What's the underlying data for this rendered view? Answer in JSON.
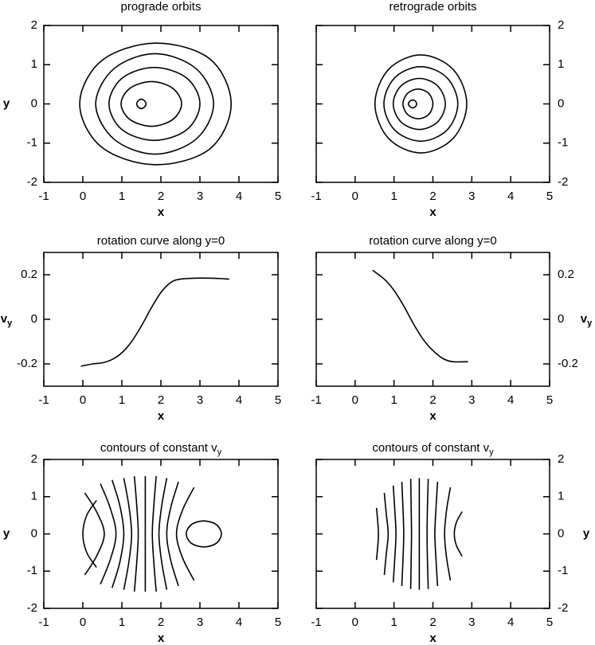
{
  "chart_data": [
    {
      "type": "line",
      "title": "prograde orbits",
      "xlabel": "x",
      "ylabel": "y",
      "yaxis_position": "left",
      "color": "#000000",
      "xlim": [
        -1,
        5
      ],
      "ylim": [
        -2,
        2
      ],
      "xticks": [
        -1,
        0,
        1,
        2,
        3,
        4,
        5
      ],
      "yticks": [
        -2,
        -1,
        0,
        1,
        2
      ],
      "series": [
        {
          "closed": true,
          "x": [
            3.8,
            3.25,
            1.85,
            0.48,
            -0.08,
            0.48,
            1.85,
            3.25
          ],
          "y": [
            0,
            1.15,
            1.55,
            1.1,
            0,
            -1.1,
            -1.55,
            -1.15
          ]
        },
        {
          "closed": true,
          "x": [
            3.35,
            2.9,
            1.85,
            0.8,
            0.33,
            0.8,
            1.85,
            2.9
          ],
          "y": [
            0,
            0.9,
            1.28,
            0.9,
            0,
            -0.9,
            -1.28,
            -0.9
          ]
        },
        {
          "closed": true,
          "x": [
            3.0,
            2.66,
            1.83,
            1.01,
            0.67,
            1.01,
            1.83,
            2.66
          ],
          "y": [
            0,
            0.66,
            0.93,
            0.66,
            0,
            -0.66,
            -0.93,
            -0.66
          ]
        },
        {
          "closed": true,
          "x": [
            2.53,
            2.3,
            1.76,
            1.21,
            0.98,
            1.21,
            1.76,
            2.3
          ],
          "y": [
            0,
            0.4,
            0.57,
            0.4,
            0,
            -0.4,
            -0.57,
            -0.4
          ]
        },
        {
          "closed": true,
          "x": [
            1.62,
            1.58,
            1.5,
            1.42,
            1.38,
            1.42,
            1.5,
            1.58
          ],
          "y": [
            0,
            0.08,
            0.12,
            0.08,
            0,
            -0.08,
            -0.12,
            -0.08
          ]
        }
      ]
    },
    {
      "type": "line",
      "title": "retrograde orbits",
      "xlabel": "x",
      "yaxis_position": "right",
      "color": "#000000",
      "xlim": [
        -1,
        5
      ],
      "ylim": [
        -2,
        2
      ],
      "xticks": [
        -1,
        0,
        1,
        2,
        3,
        4,
        5
      ],
      "yticks": [
        -2,
        -1,
        0,
        1,
        2
      ],
      "series": [
        {
          "closed": true,
          "x": [
            2.87,
            2.52,
            1.69,
            0.86,
            0.51,
            0.86,
            1.69,
            2.52
          ],
          "y": [
            0,
            0.88,
            1.25,
            0.88,
            0,
            -0.88,
            -1.25,
            -0.88
          ]
        },
        {
          "closed": true,
          "x": [
            2.64,
            2.36,
            1.69,
            1.02,
            0.74,
            1.02,
            1.69,
            2.36
          ],
          "y": [
            0,
            0.67,
            0.95,
            0.67,
            0,
            -0.67,
            -0.95,
            -0.67
          ]
        },
        {
          "closed": true,
          "x": [
            2.32,
            2.12,
            1.65,
            1.18,
            0.98,
            1.18,
            1.65,
            2.12
          ],
          "y": [
            0,
            0.46,
            0.65,
            0.46,
            0,
            -0.46,
            -0.65,
            -0.46
          ]
        },
        {
          "closed": true,
          "x": [
            2.0,
            1.89,
            1.62,
            1.35,
            1.23,
            1.35,
            1.62,
            1.89
          ],
          "y": [
            0,
            0.27,
            0.38,
            0.27,
            0,
            -0.27,
            -0.38,
            -0.27
          ]
        },
        {
          "closed": true,
          "x": [
            1.58,
            1.55,
            1.48,
            1.41,
            1.37,
            1.41,
            1.48,
            1.55
          ],
          "y": [
            0,
            0.07,
            0.1,
            0.07,
            0,
            -0.07,
            -0.1,
            -0.07
          ]
        }
      ]
    },
    {
      "type": "line",
      "title": "rotation curve along y=0",
      "xlabel": "x",
      "ylabel": {
        "text": "v",
        "sub": "y"
      },
      "yaxis_position": "left",
      "color": "#000000",
      "xlim": [
        -1,
        5
      ],
      "ylim": [
        -0.3,
        0.3
      ],
      "xticks": [
        -1,
        0,
        1,
        2,
        3,
        4,
        5
      ],
      "yticks": [
        -0.2,
        0,
        0.2
      ],
      "series": [
        {
          "x": [
            -0.05,
            0.25,
            0.5,
            0.75,
            1.0,
            1.25,
            1.5,
            1.75,
            2.0,
            2.25,
            2.5,
            3.0,
            3.5,
            3.75
          ],
          "y": [
            -0.21,
            -0.2,
            -0.195,
            -0.18,
            -0.15,
            -0.1,
            -0.03,
            0.05,
            0.12,
            0.165,
            0.18,
            0.185,
            0.183,
            0.18
          ]
        }
      ]
    },
    {
      "type": "line",
      "title": "rotation curve along y=0",
      "xlabel": "x",
      "ylabel": {
        "text": "v",
        "sub": "y"
      },
      "yaxis_position": "right",
      "color": "#000000",
      "xlim": [
        -1,
        5
      ],
      "ylim": [
        -0.3,
        0.3
      ],
      "xticks": [
        -1,
        0,
        1,
        2,
        3,
        4,
        5
      ],
      "yticks": [
        -0.2,
        0,
        0.2
      ],
      "series": [
        {
          "x": [
            0.45,
            0.75,
            1.0,
            1.25,
            1.5,
            1.75,
            2.0,
            2.25,
            2.5,
            2.9
          ],
          "y": [
            0.22,
            0.18,
            0.13,
            0.06,
            -0.02,
            -0.09,
            -0.14,
            -0.175,
            -0.19,
            -0.19
          ]
        }
      ]
    },
    {
      "type": "line",
      "title": {
        "text": "contours of constant v",
        "sub": "y"
      },
      "xlabel": "x",
      "ylabel": "y",
      "yaxis_position": "left",
      "color": "#000000",
      "xlim": [
        -1,
        5
      ],
      "ylim": [
        -2,
        2
      ],
      "xticks": [
        -1,
        0,
        1,
        2,
        3,
        4,
        5
      ],
      "yticks": [
        -2,
        -1,
        0,
        1,
        2
      ],
      "series": [
        {
          "x": [
            0.35,
            0.1,
            0.0,
            0.1,
            0.35
          ],
          "y": [
            -0.9,
            -0.5,
            0,
            0.5,
            0.9
          ]
        },
        {
          "x": [
            0.05,
            0.35,
            0.55,
            0.35,
            0.05
          ],
          "y": [
            -1.1,
            -0.6,
            0,
            0.6,
            1.1
          ]
        },
        {
          "x": [
            0.45,
            0.7,
            0.85,
            0.7,
            0.45
          ],
          "y": [
            -1.35,
            -0.7,
            0,
            0.7,
            1.35
          ]
        },
        {
          "x": [
            0.75,
            0.95,
            1.05,
            0.95,
            0.75
          ],
          "y": [
            -1.45,
            -0.75,
            0,
            0.75,
            1.45
          ]
        },
        {
          "x": [
            1.05,
            1.18,
            1.25,
            1.18,
            1.05
          ],
          "y": [
            -1.5,
            -0.75,
            0,
            0.75,
            1.5
          ]
        },
        {
          "x": [
            1.32,
            1.38,
            1.42,
            1.38,
            1.32
          ],
          "y": [
            -1.55,
            -0.78,
            0,
            0.78,
            1.55
          ]
        },
        {
          "x": [
            1.6,
            1.6,
            1.6,
            1.6,
            1.6
          ],
          "y": [
            -1.55,
            -0.78,
            0,
            0.78,
            1.55
          ]
        },
        {
          "x": [
            1.88,
            1.82,
            1.78,
            1.82,
            1.88
          ],
          "y": [
            -1.55,
            -0.78,
            0,
            0.78,
            1.55
          ]
        },
        {
          "x": [
            2.15,
            2.02,
            1.95,
            2.02,
            2.15
          ],
          "y": [
            -1.5,
            -0.75,
            0,
            0.75,
            1.5
          ]
        },
        {
          "x": [
            2.45,
            2.25,
            2.15,
            2.25,
            2.45
          ],
          "y": [
            -1.4,
            -0.7,
            0,
            0.7,
            1.4
          ]
        },
        {
          "x": [
            2.85,
            2.55,
            2.4,
            2.55,
            2.85
          ],
          "y": [
            -1.25,
            -0.63,
            0,
            0.63,
            1.25
          ]
        },
        {
          "closed": true,
          "x": [
            3.55,
            3.42,
            3.1,
            2.78,
            2.65,
            2.78,
            3.1,
            3.42
          ],
          "y": [
            0,
            0.25,
            0.35,
            0.25,
            0,
            -0.25,
            -0.35,
            -0.25
          ]
        }
      ]
    },
    {
      "type": "line",
      "title": {
        "text": "contours of constant v",
        "sub": "y"
      },
      "xlabel": "x",
      "ylabel": "y",
      "yaxis_position": "right",
      "color": "#000000",
      "xlim": [
        -1,
        5
      ],
      "ylim": [
        -2,
        2
      ],
      "xticks": [
        -1,
        0,
        1,
        2,
        3,
        4,
        5
      ],
      "yticks": [
        -2,
        -1,
        0,
        1,
        2
      ],
      "series": [
        {
          "x": [
            0.55,
            0.58,
            0.6,
            0.58,
            0.55
          ],
          "y": [
            -0.7,
            -0.35,
            0,
            0.35,
            0.7
          ]
        },
        {
          "x": [
            0.75,
            0.8,
            0.85,
            0.8,
            0.75
          ],
          "y": [
            -1.1,
            -0.55,
            0,
            0.55,
            1.1
          ]
        },
        {
          "x": [
            0.98,
            1.02,
            1.05,
            1.02,
            0.98
          ],
          "y": [
            -1.3,
            -0.65,
            0,
            0.65,
            1.3
          ]
        },
        {
          "x": [
            1.2,
            1.23,
            1.25,
            1.23,
            1.2
          ],
          "y": [
            -1.4,
            -0.7,
            0,
            0.7,
            1.4
          ]
        },
        {
          "x": [
            1.43,
            1.44,
            1.45,
            1.44,
            1.43
          ],
          "y": [
            -1.48,
            -0.74,
            0,
            0.74,
            1.48
          ]
        },
        {
          "x": [
            1.65,
            1.65,
            1.65,
            1.65,
            1.65
          ],
          "y": [
            -1.5,
            -0.75,
            0,
            0.75,
            1.5
          ]
        },
        {
          "x": [
            1.88,
            1.86,
            1.85,
            1.86,
            1.88
          ],
          "y": [
            -1.48,
            -0.74,
            0,
            0.74,
            1.48
          ]
        },
        {
          "x": [
            2.12,
            2.08,
            2.05,
            2.08,
            2.12
          ],
          "y": [
            -1.4,
            -0.7,
            0,
            0.7,
            1.4
          ]
        },
        {
          "x": [
            2.45,
            2.35,
            2.3,
            2.35,
            2.45
          ],
          "y": [
            -1.25,
            -0.63,
            0,
            0.63,
            1.25
          ]
        },
        {
          "x": [
            2.75,
            2.6,
            2.55,
            2.6,
            2.75
          ],
          "y": [
            -0.6,
            -0.3,
            0,
            0.3,
            0.6
          ]
        }
      ]
    }
  ]
}
